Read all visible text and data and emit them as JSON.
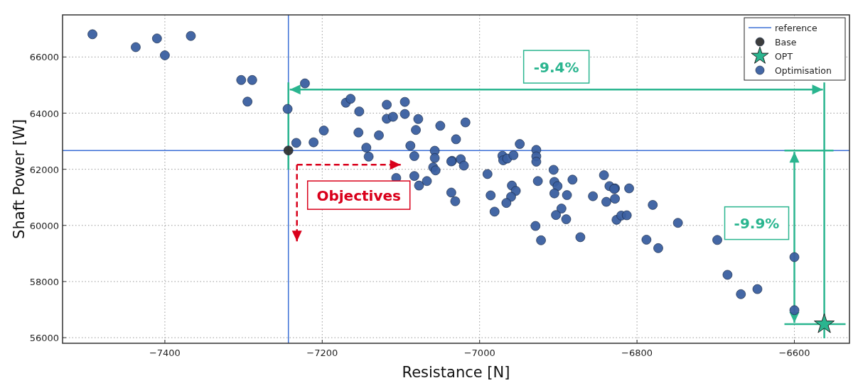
{
  "chart_data": {
    "type": "scatter",
    "xlabel": "Resistance [N]",
    "ylabel": "Shaft Power [W]",
    "xlim": [
      -7530,
      -6530
    ],
    "ylim": [
      55800,
      67500
    ],
    "xticks": [
      {
        "value": -7400,
        "label": "−7400"
      },
      {
        "value": -7200,
        "label": "−7200"
      },
      {
        "value": -7000,
        "label": "−7000"
      },
      {
        "value": -6800,
        "label": "−6800"
      },
      {
        "value": -6600,
        "label": "−6600"
      }
    ],
    "yticks": [
      56000,
      58000,
      60000,
      62000,
      64000,
      66000
    ],
    "grid": true,
    "legend": "top right",
    "ref_lines": [
      {
        "axis": "y",
        "value": 62670,
        "label": "reference",
        "color": "#3b6fd6"
      },
      {
        "axis": "x",
        "value": -7243,
        "color": "#3b6fd6"
      }
    ],
    "annotations": [
      "-9.4%",
      "-9.9%",
      "Objectives"
    ],
    "series": [
      {
        "name": "Base",
        "marker": "circle",
        "color": "#333333",
        "x": [
          -7243
        ],
        "values": [
          62670
        ]
      },
      {
        "name": "OPT",
        "marker": "star",
        "color": "#2ab58f",
        "x": [
          -6562
        ],
        "values": [
          56480
        ]
      },
      {
        "name": "Optimisation",
        "marker": "circle",
        "color": "#3a5fa0",
        "x": [
          -7492,
          -7437,
          -7410,
          -7400,
          -7367,
          -7303,
          -7289,
          -7295,
          -7222,
          -7244,
          -7233,
          -7211,
          -7198,
          -7170,
          -7164,
          -7153,
          -7154,
          -7144,
          -7141,
          -7128,
          -7118,
          -7118,
          -7110,
          -7106,
          -7095,
          -7095,
          -7088,
          -7083,
          -7083,
          -7078,
          -7081,
          -7077,
          -7067,
          -7057,
          -7057,
          -7059,
          -7056,
          -7050,
          -7036,
          -7031,
          -7035,
          -7036,
          -7030,
          -7024,
          -7020,
          -7018,
          -6990,
          -6986,
          -6981,
          -6971,
          -6970,
          -6965,
          -6957,
          -6949,
          -6959,
          -6954,
          -6960,
          -6966,
          -6928,
          -6928,
          -6928,
          -6926,
          -6929,
          -6922,
          -6906,
          -6905,
          -6901,
          -6905,
          -6889,
          -6896,
          -6903,
          -6890,
          -6882,
          -6872,
          -6856,
          -6842,
          -6835,
          -6828,
          -6829,
          -6839,
          -6828,
          -6826,
          -6820,
          -6813,
          -6810,
          -6780,
          -6788,
          -6773,
          -6748,
          -6698,
          -6685,
          -6668,
          -6647,
          -6600,
          -6600
        ],
        "values": [
          66810,
          66350,
          66660,
          66060,
          66750,
          65180,
          65180,
          64410,
          65060,
          64150,
          62940,
          62960,
          63380,
          64370,
          64510,
          64060,
          63310,
          62770,
          62450,
          63210,
          64300,
          63800,
          63870,
          61690,
          64400,
          63970,
          62840,
          62470,
          61760,
          63790,
          63400,
          61420,
          61580,
          62660,
          62400,
          62070,
          61960,
          63550,
          61170,
          60860,
          62300,
          62280,
          63070,
          62360,
          62130,
          63670,
          61830,
          61070,
          60490,
          62480,
          62320,
          62380,
          62500,
          62900,
          61420,
          61230,
          61020,
          60800,
          62690,
          62460,
          62270,
          61580,
          59980,
          59470,
          61980,
          61550,
          61400,
          61140,
          61080,
          60600,
          60370,
          60220,
          61630,
          59580,
          61040,
          61790,
          61400,
          61320,
          61300,
          60840,
          60950,
          60200,
          60350,
          60360,
          61320,
          60730,
          59490,
          59190,
          60090,
          59480,
          58240,
          57550,
          57730,
          58870,
          56980
        ]
      }
    ]
  }
}
